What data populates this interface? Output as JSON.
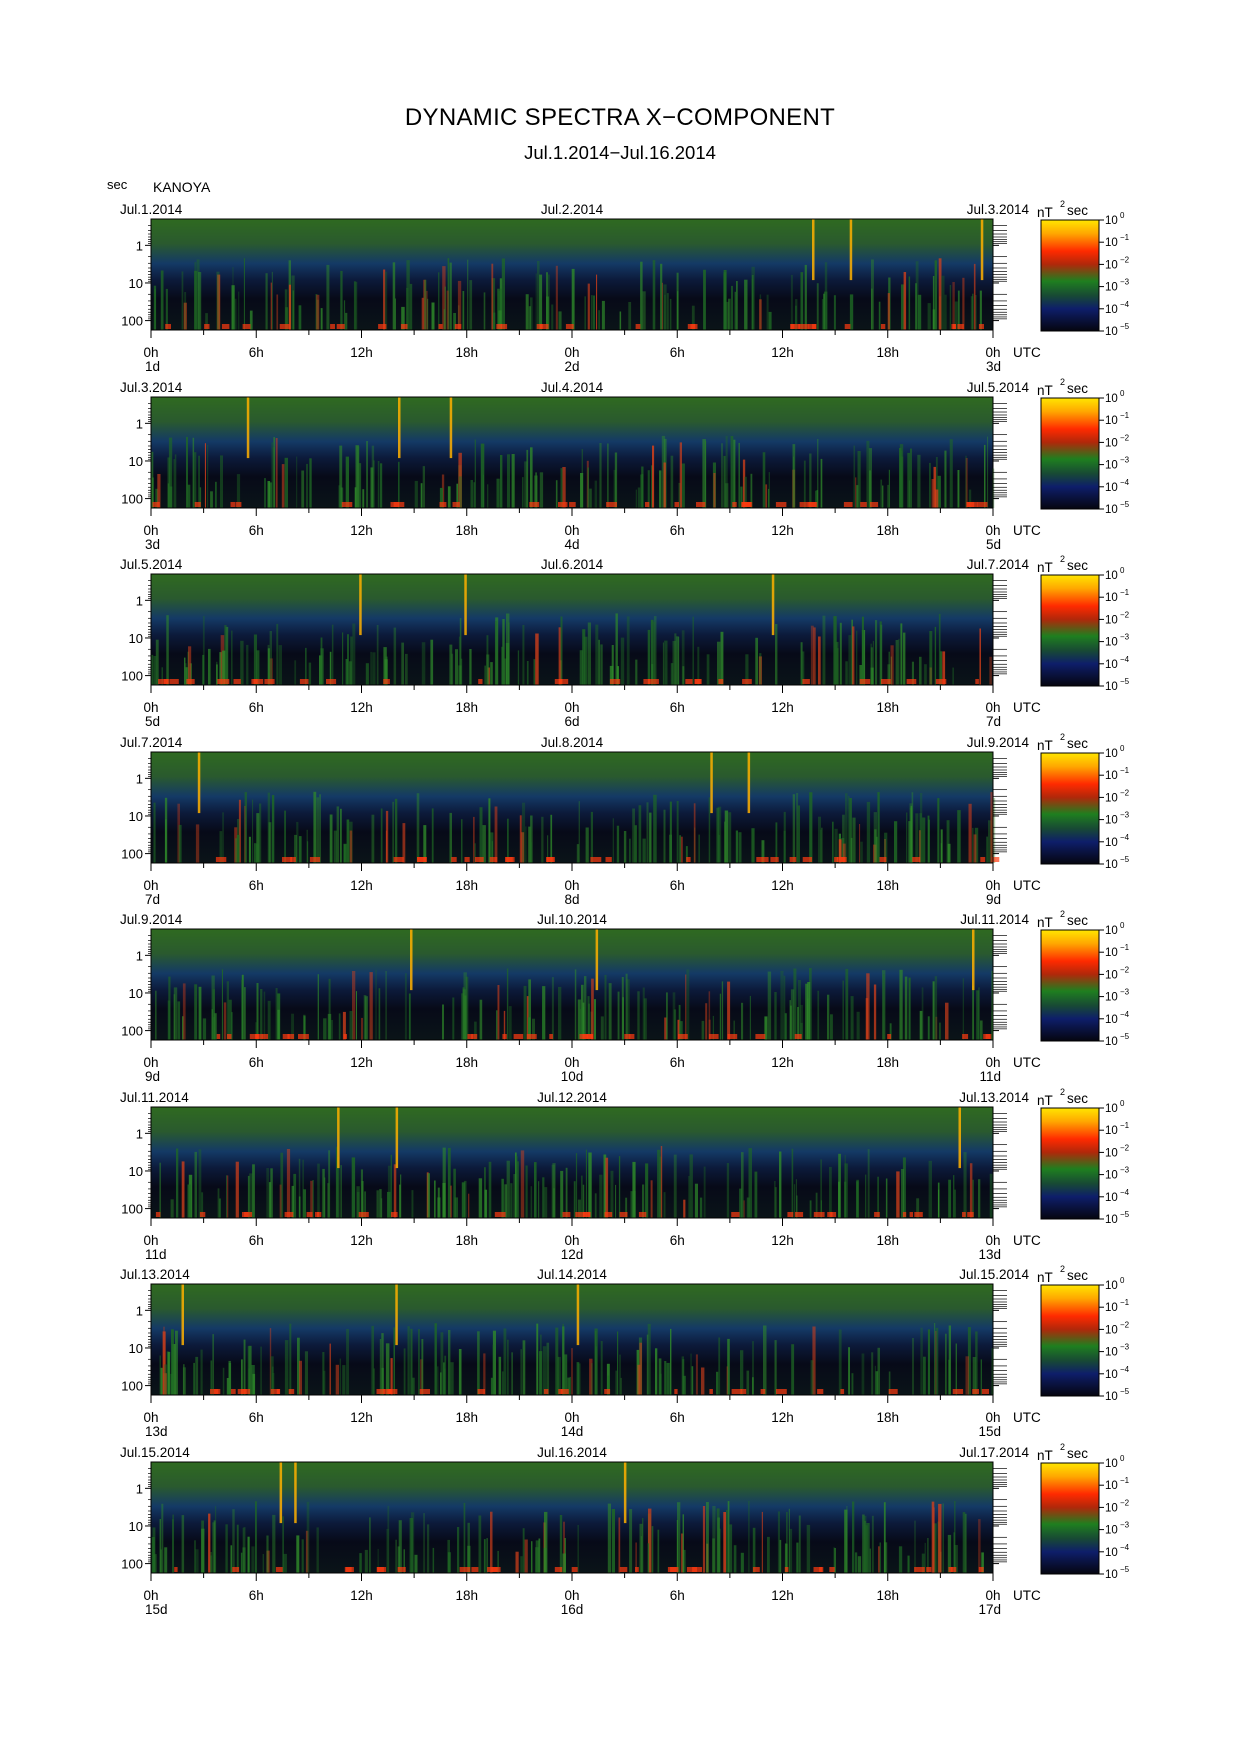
{
  "title": "DYNAMIC SPECTRA X−COMPONENT",
  "subtitle": "Jul.1.2014−Jul.16.2014",
  "units_label": "sec",
  "station": "KANOYA",
  "chart_data": {
    "type": "heatmap",
    "title": "DYNAMIC SPECTRA X−COMPONENT",
    "subtitle": "Jul.1.2014−Jul.16.2014",
    "station": "KANOYA",
    "ylabel": "sec",
    "y_scale": "log",
    "y_ticks": [
      "1",
      "10",
      "100"
    ],
    "x_ticks": [
      "0h",
      "6h",
      "12h",
      "18h",
      "0h",
      "6h",
      "12h",
      "18h",
      "0h"
    ],
    "x_unit": "UTC",
    "colorbar": {
      "label": "nT",
      "label_sup": "2",
      "label_suffix": "sec",
      "tick_base": "10",
      "tick_exponents": [
        "0",
        "−1",
        "−2",
        "−3",
        "−4",
        "−5"
      ],
      "colors": [
        "#0a0a1e",
        "#1b2a78",
        "#1f7a1f",
        "#e63a10",
        "#ffd800"
      ]
    },
    "panels": [
      {
        "date_left": "Jul.1.2014",
        "date_mid": "Jul.2.2014",
        "date_right": "Jul.3.2014",
        "day_left": "1d",
        "day_mid": "2d",
        "day_right": "3d"
      },
      {
        "date_left": "Jul.3.2014",
        "date_mid": "Jul.4.2014",
        "date_right": "Jul.5.2014",
        "day_left": "3d",
        "day_mid": "4d",
        "day_right": "5d"
      },
      {
        "date_left": "Jul.5.2014",
        "date_mid": "Jul.6.2014",
        "date_right": "Jul.7.2014",
        "day_left": "5d",
        "day_mid": "6d",
        "day_right": "7d"
      },
      {
        "date_left": "Jul.7.2014",
        "date_mid": "Jul.8.2014",
        "date_right": "Jul.9.2014",
        "day_left": "7d",
        "day_mid": "8d",
        "day_right": "9d"
      },
      {
        "date_left": "Jul.9.2014",
        "date_mid": "Jul.10.2014",
        "date_right": "Jul.11.2014",
        "day_left": "9d",
        "day_mid": "10d",
        "day_right": "11d"
      },
      {
        "date_left": "Jul.11.2014",
        "date_mid": "Jul.12.2014",
        "date_right": "Jul.13.2014",
        "day_left": "11d",
        "day_mid": "12d",
        "day_right": "13d"
      },
      {
        "date_left": "Jul.13.2014",
        "date_mid": "Jul.14.2014",
        "date_right": "Jul.15.2014",
        "day_left": "13d",
        "day_mid": "14d",
        "day_right": "15d"
      },
      {
        "date_left": "Jul.15.2014",
        "date_mid": "Jul.16.2014",
        "date_right": "Jul.17.2014",
        "day_left": "15d",
        "day_mid": "16d",
        "day_right": "17d"
      }
    ]
  }
}
